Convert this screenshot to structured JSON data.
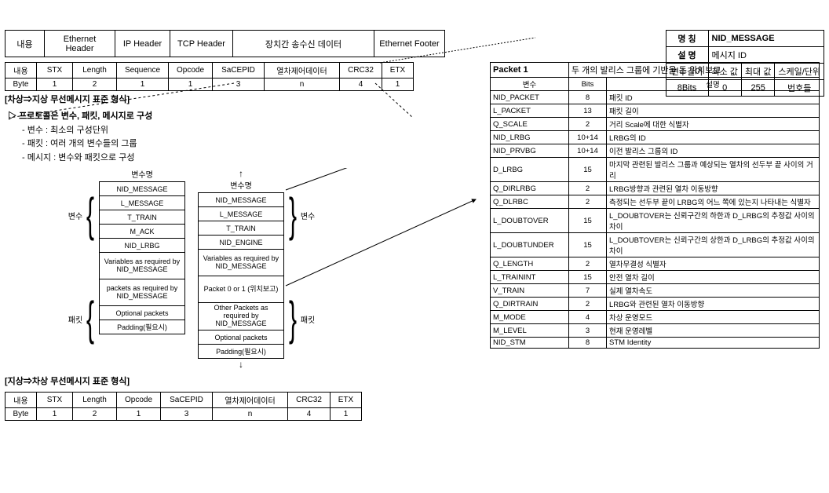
{
  "ethernet_frame": {
    "cells": [
      "내용",
      "Ethernet Header",
      "IP Header",
      "TCP Header",
      "장치간 송수신 데이터",
      "Ethernet Footer"
    ],
    "widths": [
      50,
      90,
      70,
      80,
      180,
      90
    ]
  },
  "nid_message_box": {
    "rows": [
      [
        "명 칭",
        "NID_MESSAGE"
      ],
      [
        "설 명",
        "메시지 ID"
      ]
    ],
    "header": [
      "변수길이",
      "최소 값",
      "최대 값",
      "스케일/단위"
    ],
    "values": [
      "8Bits",
      "0",
      "255",
      "번호들"
    ]
  },
  "byte_table_top": {
    "headers": [
      "내용",
      "STX",
      "Length",
      "Sequence",
      "Opcode",
      "SaCEPID",
      "열차제어데이터",
      "CRC32",
      "ETX"
    ],
    "bytes": [
      "Byte",
      "1",
      "2",
      "1",
      "1",
      "3",
      "n",
      "4",
      "1"
    ],
    "widths": [
      40,
      46,
      56,
      66,
      56,
      66,
      96,
      54,
      40
    ],
    "caption": "[차상⇒지상 무선메시지 표준 형식]"
  },
  "byte_table_bottom": {
    "headers": [
      "내용",
      "STX",
      "Length",
      "Opcode",
      "SaCEPID",
      "열차제어데이터",
      "CRC32",
      "ETX"
    ],
    "bytes": [
      "Byte",
      "1",
      "2",
      "1",
      "3",
      "n",
      "4",
      "1"
    ],
    "widths": [
      40,
      46,
      56,
      56,
      66,
      96,
      54,
      40
    ],
    "caption": "[지상⇒차상 무선메시지 표준 형식]"
  },
  "protocol_text": {
    "title": "프로토콜은 변수, 패킷, 메시지로 구성",
    "lines": [
      "- 변수 : 최소의 구성단위",
      "- 패킷 : 여러 개의 변수들의 그룹",
      "- 메시지 : 변수와 패킷으로 구성"
    ]
  },
  "stack_left": {
    "header": "변수명",
    "cells": [
      {
        "t": "NID_MESSAGE"
      },
      {
        "t": "L_MESSAGE"
      },
      {
        "t": "T_TRAIN"
      },
      {
        "t": "M_ACK"
      },
      {
        "t": "NID_LRBG"
      },
      {
        "t": "Variables as required by NID_MESSAGE",
        "multi": true
      },
      {
        "t": "packets as required by NID_MESSAGE",
        "multi": true
      },
      {
        "t": "Optional packets"
      },
      {
        "t": "Padding(필요시)"
      }
    ]
  },
  "stack_right": {
    "header": "변수명",
    "cells": [
      {
        "t": "NID_MESSAGE"
      },
      {
        "t": "L_MESSAGE"
      },
      {
        "t": "T_TRAIN"
      },
      {
        "t": "NID_ENGINE"
      },
      {
        "t": "Variables as required by NID_MESSAGE",
        "multi": true
      },
      {
        "t": "Packet 0 or 1 (위치보고)",
        "multi": true
      },
      {
        "t": "Other Packets as required by NID_MESSAGE",
        "multi": true
      },
      {
        "t": "Optional packets"
      },
      {
        "t": "Padding(필요시)"
      }
    ]
  },
  "brace_labels": {
    "var": "변수",
    "pkt": "패킷"
  },
  "packet_table": {
    "title_left": "Packet 1",
    "title_right": "두 개의 발리스 그룹에 기반을 둔 위치보고",
    "header": [
      "변수",
      "Bits",
      "설명"
    ],
    "rows": [
      [
        "NID_PACKET",
        "8",
        "패킷 ID"
      ],
      [
        "L_PACKET",
        "13",
        "패킷 길이"
      ],
      [
        "Q_SCALE",
        "2",
        "거리 Scale에 대한 식별자"
      ],
      [
        "NID_LRBG",
        "10+14",
        "LRBG의 ID"
      ],
      [
        "NID_PRVBG",
        "10+14",
        "이전 발리스 그룹의 ID"
      ],
      [
        "D_LRBG",
        "15",
        "마지막 관련된 발리스 그룹과 예상되는 열차의 선두부 끝 사이의 거리"
      ],
      [
        "Q_DIRLRBG",
        "2",
        "LRBG방향과 관련된 열차 이동방향"
      ],
      [
        "Q_DLRBC",
        "2",
        "측정되는 선두부 끝이 LRBG의 어느 쪽에 있는지 나타내는 식별자"
      ],
      [
        "L_DOUBTOVER",
        "15",
        "L_DOUBTOVER는 신뢰구간의 하한과 D_LRBG의 추정값 사이의 차이"
      ],
      [
        "L_DOUBTUNDER",
        "15",
        "L_DOUBTOVER는 신뢰구간의 상한과 D_LRBG의 추정값 사이의 차이"
      ],
      [
        "Q_LENGTH",
        "2",
        "열차무결성 식별자"
      ],
      [
        "L_TRAININT",
        "15",
        "안전 열차 길이"
      ],
      [
        "V_TRAIN",
        "7",
        "실제 열차속도"
      ],
      [
        "Q_DIRTRAIN",
        "2",
        "LRBG와 관련된 열차 이동방향"
      ],
      [
        "M_MODE",
        "4",
        "차상 운영모드"
      ],
      [
        "M_LEVEL",
        "3",
        "현재 운영레벨"
      ],
      [
        "NID_STM",
        "8",
        "STM Identity"
      ]
    ]
  },
  "colors": {
    "border": "#000",
    "bg": "#fff"
  }
}
